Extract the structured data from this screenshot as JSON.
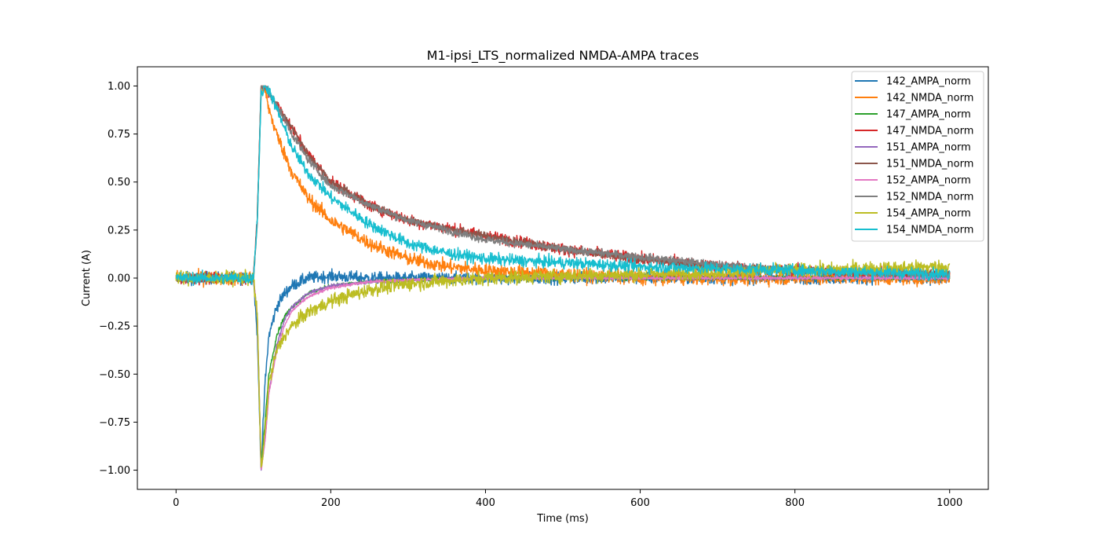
{
  "chart_data": {
    "type": "line",
    "title": "M1-ipsi_LTS_normalized NMDA-AMPA traces",
    "xlabel": "Time (ms)",
    "ylabel": "Current (A)",
    "xlim": [
      -50,
      1050
    ],
    "ylim": [
      -1.1,
      1.1
    ],
    "x_ticks": [
      0,
      200,
      400,
      600,
      800,
      1000
    ],
    "y_ticks": [
      -1.0,
      -0.75,
      -0.5,
      -0.25,
      0.0,
      0.25,
      0.5,
      0.75,
      1.0
    ],
    "x_tick_labels": [
      "0",
      "200",
      "400",
      "600",
      "800",
      "1000"
    ],
    "y_tick_labels": [
      "−1.00",
      "−0.75",
      "−0.50",
      "−0.25",
      "0.00",
      "0.25",
      "0.50",
      "0.75",
      "1.00"
    ],
    "grid": false,
    "legend_position": "top-right",
    "x_range": [
      0,
      1000
    ],
    "series": [
      {
        "name": "142_AMPA_norm",
        "color": "#1f77b4",
        "x": [
          0,
          100,
          105,
          110,
          115,
          120,
          130,
          140,
          150,
          170,
          200,
          250,
          300,
          400,
          600,
          800,
          1000
        ],
        "y": [
          0.0,
          0.0,
          -0.3,
          -1.0,
          -0.55,
          -0.3,
          -0.15,
          -0.08,
          -0.04,
          0.0,
          0.01,
          0.0,
          0.0,
          0.0,
          0.0,
          0.0,
          0.0
        ],
        "noise": 0.03
      },
      {
        "name": "142_NMDA_norm",
        "color": "#ff7f0e",
        "x": [
          0,
          100,
          105,
          110,
          115,
          120,
          130,
          150,
          170,
          200,
          250,
          300,
          350,
          400,
          500,
          600,
          800,
          1000
        ],
        "y": [
          0.0,
          0.0,
          0.3,
          1.0,
          0.98,
          0.88,
          0.75,
          0.55,
          0.42,
          0.3,
          0.18,
          0.1,
          0.06,
          0.04,
          0.02,
          0.0,
          0.0,
          0.0
        ],
        "noise": 0.035
      },
      {
        "name": "147_AMPA_norm",
        "color": "#2ca02c",
        "x": [
          0,
          100,
          105,
          110,
          115,
          120,
          130,
          140,
          150,
          170,
          200,
          250,
          300,
          400,
          600,
          800,
          1000
        ],
        "y": [
          0.0,
          0.0,
          -0.2,
          -1.0,
          -0.75,
          -0.5,
          -0.3,
          -0.2,
          -0.15,
          -0.08,
          -0.04,
          -0.02,
          -0.01,
          0.0,
          0.0,
          0.0,
          0.0
        ],
        "noise": 0.01
      },
      {
        "name": "147_NMDA_norm",
        "color": "#d62728",
        "x": [
          0,
          100,
          105,
          110,
          115,
          120,
          130,
          150,
          170,
          200,
          250,
          300,
          400,
          500,
          600,
          700,
          800,
          1000
        ],
        "y": [
          0.0,
          0.0,
          0.3,
          1.0,
          1.0,
          0.97,
          0.9,
          0.78,
          0.65,
          0.5,
          0.38,
          0.3,
          0.22,
          0.15,
          0.1,
          0.06,
          0.04,
          0.02
        ],
        "noise": 0.03
      },
      {
        "name": "151_AMPA_norm",
        "color": "#9467bd",
        "x": [
          0,
          100,
          105,
          110,
          115,
          120,
          130,
          140,
          150,
          170,
          200,
          250,
          300,
          400,
          600,
          800,
          1000
        ],
        "y": [
          0.0,
          0.0,
          -0.2,
          -1.0,
          -0.85,
          -0.6,
          -0.35,
          -0.22,
          -0.15,
          -0.08,
          -0.04,
          -0.02,
          -0.01,
          0.0,
          0.0,
          0.0,
          0.0
        ],
        "noise": 0.008
      },
      {
        "name": "151_NMDA_norm",
        "color": "#8c564b",
        "x": [
          0,
          100,
          105,
          110,
          115,
          120,
          130,
          150,
          170,
          200,
          250,
          300,
          400,
          500,
          600,
          700,
          800,
          1000
        ],
        "y": [
          0.0,
          0.0,
          0.3,
          1.0,
          1.0,
          0.97,
          0.9,
          0.78,
          0.65,
          0.5,
          0.38,
          0.3,
          0.22,
          0.15,
          0.1,
          0.06,
          0.04,
          0.02
        ],
        "noise": 0.02
      },
      {
        "name": "152_AMPA_norm",
        "color": "#e377c2",
        "x": [
          0,
          100,
          105,
          110,
          115,
          120,
          130,
          140,
          150,
          170,
          200,
          250,
          300,
          400,
          600,
          800,
          1000
        ],
        "y": [
          0.0,
          0.0,
          -0.2,
          -1.0,
          -0.85,
          -0.6,
          -0.38,
          -0.25,
          -0.17,
          -0.1,
          -0.05,
          -0.02,
          -0.01,
          0.0,
          0.0,
          0.0,
          0.0
        ],
        "noise": 0.008
      },
      {
        "name": "152_NMDA_norm",
        "color": "#7f7f7f",
        "x": [
          0,
          100,
          105,
          110,
          115,
          120,
          130,
          150,
          170,
          200,
          250,
          300,
          400,
          500,
          600,
          700,
          800,
          1000
        ],
        "y": [
          0.0,
          0.0,
          0.3,
          1.0,
          1.0,
          0.97,
          0.9,
          0.75,
          0.62,
          0.48,
          0.38,
          0.3,
          0.2,
          0.15,
          0.11,
          0.07,
          0.04,
          0.02
        ],
        "noise": 0.02
      },
      {
        "name": "154_AMPA_norm",
        "color": "#bcbd22",
        "x": [
          0,
          100,
          105,
          110,
          115,
          120,
          130,
          140,
          150,
          170,
          200,
          250,
          300,
          400,
          600,
          800,
          1000
        ],
        "y": [
          0.0,
          0.0,
          -0.2,
          -1.0,
          -0.8,
          -0.55,
          -0.38,
          -0.3,
          -0.25,
          -0.18,
          -0.12,
          -0.06,
          -0.03,
          0.0,
          0.02,
          0.04,
          0.06
        ],
        "noise": 0.035
      },
      {
        "name": "154_NMDA_norm",
        "color": "#17becf",
        "x": [
          0,
          100,
          105,
          110,
          115,
          120,
          130,
          150,
          170,
          200,
          250,
          300,
          350,
          400,
          500,
          600,
          800,
          1000
        ],
        "y": [
          0.0,
          0.0,
          0.3,
          0.95,
          1.0,
          0.98,
          0.88,
          0.68,
          0.55,
          0.42,
          0.28,
          0.18,
          0.13,
          0.1,
          0.08,
          0.06,
          0.04,
          0.02
        ],
        "noise": 0.03
      }
    ]
  }
}
